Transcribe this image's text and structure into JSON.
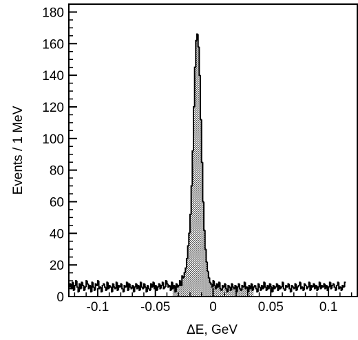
{
  "chart_data": {
    "type": "bar",
    "style": "histogram",
    "title": "",
    "xlabel": "ΔE, GeV",
    "ylabel": "Events / 1 MeV",
    "xlim": [
      -0.125,
      0.125
    ],
    "ylim": [
      0,
      185
    ],
    "bin_width": 0.001,
    "x_ticks": [
      -0.1,
      -0.05,
      0,
      0.05,
      0.1
    ],
    "x_tick_labels": [
      "-0.1",
      "-0.05",
      "0",
      "0.05",
      "0.1"
    ],
    "y_ticks": [
      0,
      20,
      40,
      60,
      80,
      100,
      120,
      140,
      160,
      180
    ],
    "y_tick_labels": [
      "0",
      "20",
      "40",
      "60",
      "80",
      "100",
      "120",
      "140",
      "160",
      "180"
    ],
    "grid": false,
    "legend": "none",
    "fill_color": "#9a9a9a",
    "shaded_range": [
      -0.035,
      0.035
    ],
    "series": [
      {
        "x_start": -0.125,
        "values": [
          6,
          8,
          5,
          9,
          4,
          7,
          10,
          6,
          3,
          8,
          5,
          9,
          7,
          4,
          6,
          10,
          8,
          5,
          7,
          3,
          9,
          6,
          4,
          8,
          7,
          10,
          5,
          6,
          3,
          7,
          8,
          6,
          4,
          9,
          5,
          7,
          6,
          3,
          8,
          6,
          5,
          9,
          4,
          7,
          6,
          8,
          5,
          3,
          7,
          6,
          9,
          4,
          8,
          6,
          5,
          7,
          3,
          6,
          8,
          5,
          7,
          4,
          9,
          6,
          5,
          8,
          6,
          3,
          7,
          5,
          4,
          8,
          6,
          9,
          5,
          7,
          4,
          6,
          8,
          5,
          7,
          9,
          5,
          6,
          10,
          8,
          6,
          7,
          4,
          9,
          5,
          7,
          3,
          8,
          6,
          7,
          10,
          7,
          13,
          12,
          15,
          18,
          24,
          32,
          40,
          52,
          70,
          92,
          120,
          145,
          162,
          166,
          158,
          140,
          112,
          85,
          60,
          42,
          30,
          22,
          16,
          12,
          9,
          8,
          6,
          10,
          7,
          5,
          8,
          6,
          9,
          5,
          4,
          7,
          6,
          8,
          5,
          3,
          7,
          6,
          4,
          8,
          6,
          5,
          7,
          3,
          6,
          8,
          5,
          4,
          7,
          6,
          9,
          5,
          6,
          3,
          7,
          5,
          8,
          4,
          6,
          7,
          5,
          3,
          8,
          6,
          4,
          7,
          5,
          9,
          6,
          4,
          7,
          5,
          8,
          6,
          3,
          7,
          5,
          6,
          8,
          4,
          7,
          5,
          6,
          9,
          5,
          4,
          7,
          6,
          8,
          5,
          3,
          7,
          6,
          5,
          8,
          4,
          6,
          7,
          9,
          5,
          6,
          4,
          8,
          7,
          5,
          6,
          9,
          4,
          7,
          6,
          8,
          5,
          7,
          4,
          6,
          9,
          5,
          7,
          6,
          8,
          5,
          7,
          4,
          6,
          9,
          5,
          7,
          8,
          6,
          4,
          7,
          9,
          5,
          6,
          4,
          7,
          6,
          9
        ]
      }
    ]
  }
}
